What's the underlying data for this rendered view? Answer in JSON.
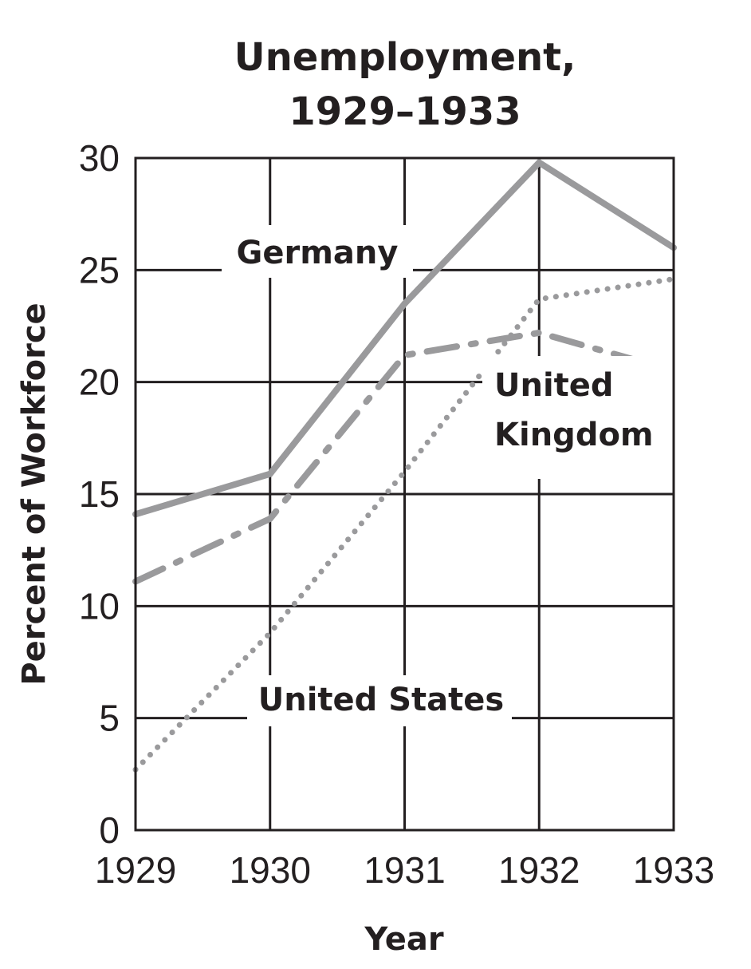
{
  "chart_data": {
    "type": "line",
    "title_lines": [
      "Unemployment,",
      "1929–1933"
    ],
    "xlabel": "Year",
    "ylabel": "Percent of Workforce",
    "categories": [
      "1929",
      "1930",
      "1931",
      "1932",
      "1933"
    ],
    "yticks": [
      "0",
      "5",
      "10",
      "15",
      "20",
      "25",
      "30"
    ],
    "ylim": [
      0,
      30
    ],
    "grid": true,
    "series": [
      {
        "name": "Germany",
        "label_lines": [
          "Germany"
        ],
        "values": [
          14.1,
          15.9,
          23.5,
          29.8,
          26.0
        ],
        "style": "solid",
        "color": "#9a9a9c"
      },
      {
        "name": "United Kingdom",
        "label_lines": [
          "United",
          "Kingdom"
        ],
        "values": [
          11.1,
          13.9,
          21.2,
          22.2,
          20.5
        ],
        "style": "dash-dot",
        "color": "#9a9a9c"
      },
      {
        "name": "United States",
        "label_lines": [
          "United States"
        ],
        "values": [
          2.7,
          8.8,
          16.0,
          23.7,
          24.6
        ],
        "style": "dotted",
        "color": "#9a9a9c"
      }
    ]
  }
}
